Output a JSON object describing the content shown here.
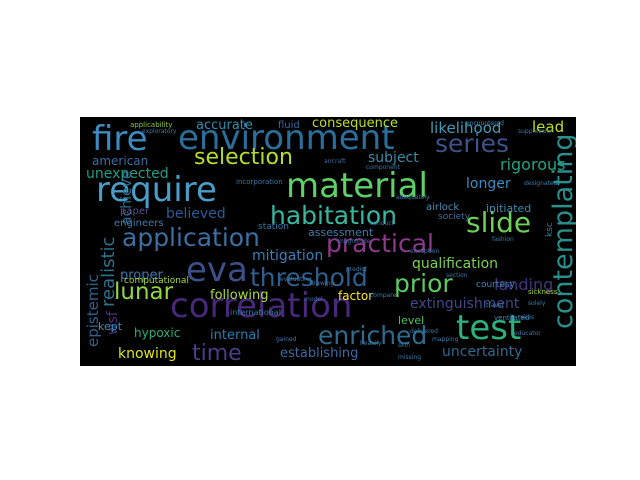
{
  "word_cloud": {
    "words": [
      {
        "text": "fire",
        "color": "#3b8bc2"
      },
      {
        "text": "environment",
        "color": "#2a6f9b"
      },
      {
        "text": "require",
        "color": "#4a9cc9"
      },
      {
        "text": "material",
        "color": "#5fd068"
      },
      {
        "text": "correlation",
        "color": "#482878"
      },
      {
        "text": "eva",
        "color": "#3c4f8a"
      },
      {
        "text": "test",
        "color": "#2db07c"
      },
      {
        "text": "application",
        "color": "#3c6ea0"
      },
      {
        "text": "habitation",
        "color": "#37b7a0"
      },
      {
        "text": "selection",
        "color": "#b5de2b"
      },
      {
        "text": "threshold",
        "color": "#2f5d8c"
      },
      {
        "text": "enriched",
        "color": "#2e6a8e"
      },
      {
        "text": "prior",
        "color": "#5ec962"
      },
      {
        "text": "practical",
        "color": "#8b3a8c"
      },
      {
        "text": "slide",
        "color": "#6ece58"
      },
      {
        "text": "contemplating",
        "color": "#2a8e8c"
      },
      {
        "text": "series",
        "color": "#3b528b"
      },
      {
        "text": "lunar",
        "color": "#8fd744"
      },
      {
        "text": "time",
        "color": "#4a3c87"
      },
      {
        "text": "realistic",
        "color": "#2c728e"
      },
      {
        "text": "epistemic",
        "color": "#35608d"
      },
      {
        "text": "likelihood",
        "color": "#3e9bb8"
      },
      {
        "text": "consequence",
        "color": "#bade28"
      },
      {
        "text": "lead",
        "color": "#c2df23"
      },
      {
        "text": "accurate",
        "color": "#2e8fb0"
      },
      {
        "text": "subject",
        "color": "#3d8aa8"
      },
      {
        "text": "rigorous",
        "color": "#20a386"
      },
      {
        "text": "longer",
        "color": "#3a8cbf"
      },
      {
        "text": "unexpected",
        "color": "#1f9e89"
      },
      {
        "text": "american",
        "color": "#3b6ca5"
      },
      {
        "text": "believed",
        "color": "#2d5a9c"
      },
      {
        "text": "mitigation",
        "color": "#3a7fb8"
      },
      {
        "text": "qualification",
        "color": "#7ad151"
      },
      {
        "text": "landing",
        "color": "#45317b"
      },
      {
        "text": "extinguishment",
        "color": "#3f4889"
      },
      {
        "text": "factor",
        "color": "#fde725"
      },
      {
        "text": "assessment",
        "color": "#3d7cae"
      },
      {
        "text": "following",
        "color": "#a8db34"
      },
      {
        "text": "internal",
        "color": "#2a7fae"
      },
      {
        "text": "uncertainty",
        "color": "#31688e"
      },
      {
        "text": "establishing",
        "color": "#3c6aa4"
      },
      {
        "text": "knowing",
        "color": "#dce319"
      },
      {
        "text": "hypoxic",
        "color": "#29af7f"
      },
      {
        "text": "proper",
        "color": "#3a78ad"
      },
      {
        "text": "achieve",
        "color": "#2e6e8e"
      },
      {
        "text": "wsf",
        "color": "#48337c"
      },
      {
        "text": "kept",
        "color": "#3b8fb8"
      },
      {
        "text": "level",
        "color": "#4ac16d"
      },
      {
        "text": "paper",
        "color": "#5b4f8c"
      },
      {
        "text": "engineers",
        "color": "#3c7aa8"
      },
      {
        "text": "computational",
        "color": "#a0da39"
      },
      {
        "text": "initiated",
        "color": "#3a8ab0"
      },
      {
        "text": "airlock",
        "color": "#4a8fb8"
      },
      {
        "text": "courtesy",
        "color": "#3a8ab8"
      },
      {
        "text": "society",
        "color": "#3e6e9b"
      },
      {
        "text": "ksc",
        "color": "#357ba3"
      },
      {
        "text": "station",
        "color": "#2c7aa8"
      },
      {
        "text": "fluid",
        "color": "#3b6aa0"
      },
      {
        "text": "applicability",
        "color": "#8cc840"
      },
      {
        "text": "international",
        "color": "#2e7ea8"
      },
      {
        "text": "ventilated",
        "color": "#3c8ab0"
      },
      {
        "text": "model",
        "color": "#3b6aa0"
      },
      {
        "text": "sickness",
        "color": "#9fda3a"
      },
      {
        "text": "compare",
        "color": "#3b7aa8"
      },
      {
        "text": "travel",
        "color": "#3b8ab8"
      },
      {
        "text": "aircraft",
        "color": "#3e6e9b"
      },
      {
        "text": "magnitude",
        "color": "#3b6aa0"
      },
      {
        "text": "predict",
        "color": "#3b7aa8"
      },
      {
        "text": "section",
        "color": "#3b7aa8"
      },
      {
        "text": "conduct",
        "color": "#3b7aa8"
      },
      {
        "text": "encountered",
        "color": "#3b8ab8"
      },
      {
        "text": "educator",
        "color": "#3b7aa8"
      },
      {
        "text": "mapping",
        "color": "#3b7aa8"
      },
      {
        "text": "missing",
        "color": "#3b7aa8"
      },
      {
        "text": "fashion",
        "color": "#3b7aa8"
      },
      {
        "text": "relies",
        "color": "#3b7aa8"
      },
      {
        "text": "solely",
        "color": "#3b7aa8"
      },
      {
        "text": "skin",
        "color": "#3b7aa8"
      },
      {
        "text": "adequately",
        "color": "#3b7aa8"
      },
      {
        "text": "evaluating",
        "color": "#3b7aa8"
      },
      {
        "text": "drawing",
        "color": "#3b7aa8"
      },
      {
        "text": "heavily",
        "color": "#3b7aa8"
      },
      {
        "text": "gained",
        "color": "#3b7aa8"
      },
      {
        "text": "exception",
        "color": "#3b7aa8"
      },
      {
        "text": "delivered",
        "color": "#3b7aa8"
      },
      {
        "text": "exploratory",
        "color": "#3b7aa8"
      },
      {
        "text": "suppression",
        "color": "#3b7aa8"
      },
      {
        "text": "component",
        "color": "#3b7aa8"
      },
      {
        "text": "designated",
        "color": "#3b7aa8"
      },
      {
        "text": "incorporation",
        "color": "#3b7aa8"
      }
    ]
  }
}
